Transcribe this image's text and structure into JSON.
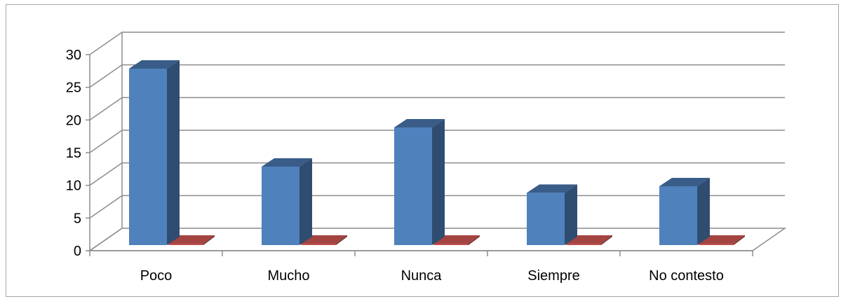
{
  "chart_data": {
    "type": "bar",
    "style": "3d-clustered-column",
    "categories": [
      "Poco",
      "Mucho",
      "Nunca",
      "Siempre",
      "No contesto"
    ],
    "series": [
      {
        "values": [
          27,
          12,
          18,
          8,
          9
        ],
        "color": "#4f81bd"
      },
      {
        "values": [
          0,
          0,
          0,
          0,
          0
        ],
        "color": "#c0504d"
      }
    ],
    "title": "",
    "xlabel": "",
    "ylabel": "",
    "ylim": [
      0,
      30
    ],
    "yticks": [
      0,
      5,
      10,
      15,
      20,
      25,
      30
    ],
    "grid": true,
    "legend": "none"
  }
}
